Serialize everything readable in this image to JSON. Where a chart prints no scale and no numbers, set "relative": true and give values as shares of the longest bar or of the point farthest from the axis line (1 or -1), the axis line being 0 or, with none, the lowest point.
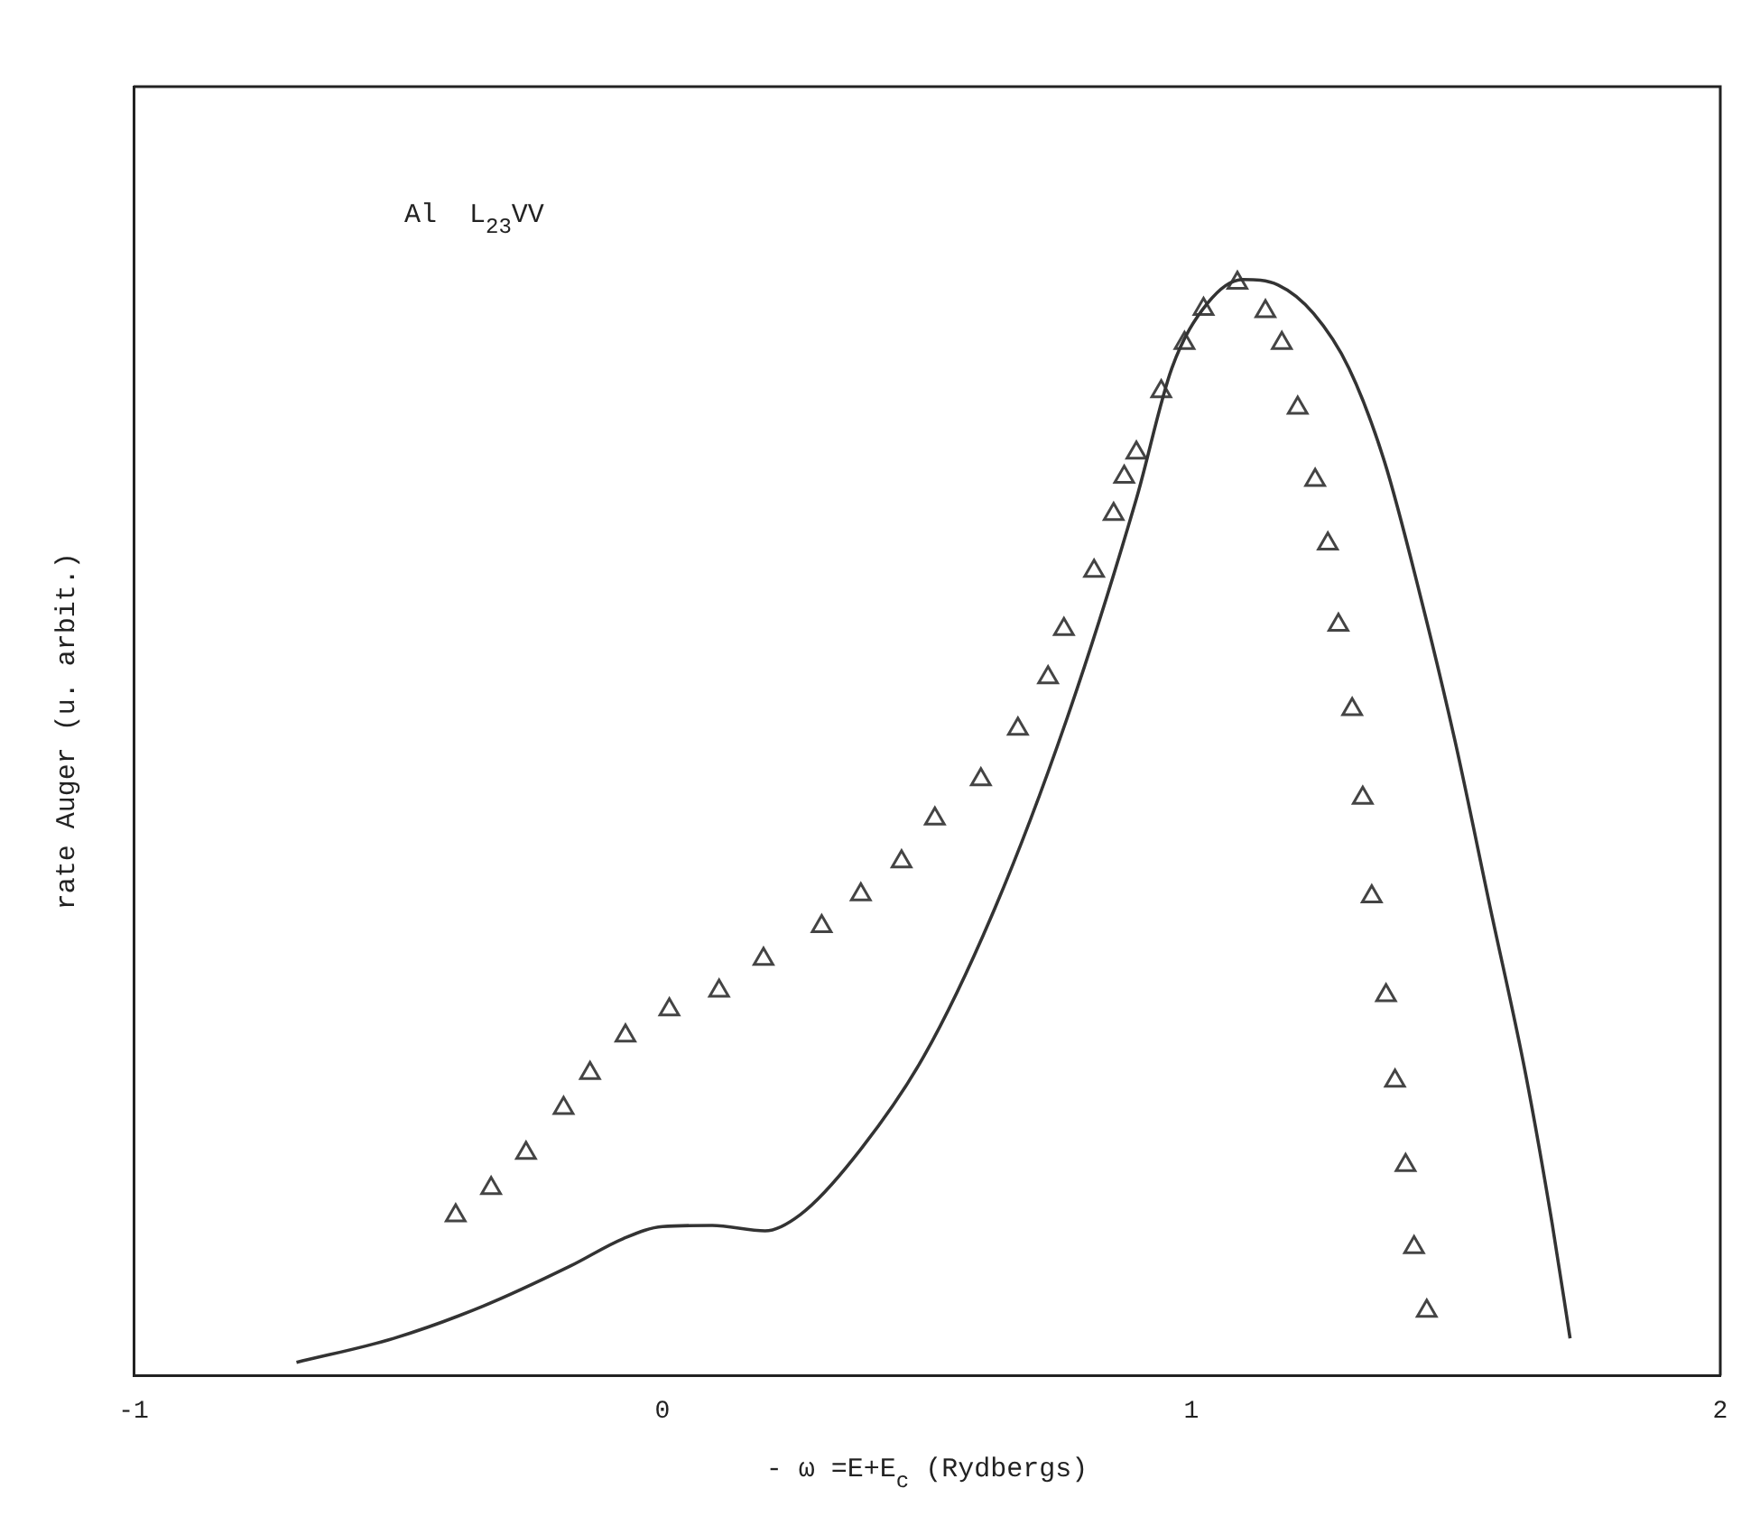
{
  "chart_data": {
    "type": "line",
    "relative": true,
    "xlabel": "- ω =E+E$_{c}$ (Rydbergs)",
    "ylabel": "rate Auger (u. arbit.)",
    "annotations": [
      "Al  L$_{23}$VV"
    ],
    "xlim": [
      -1,
      2
    ],
    "xticks": [
      -1,
      0,
      1,
      2
    ],
    "grid": false,
    "legend": false,
    "series": [
      {
        "color": "#333333",
        "marker": "none",
        "line_style": "solid",
        "x": [
          -0.692,
          -0.508,
          -0.341,
          -0.174,
          -0.074,
          0,
          0.094,
          0.194,
          0.261,
          0.361,
          0.495,
          0.629,
          0.763,
          0.896,
          0.963,
          1.03,
          1.097,
          1.164,
          1.231,
          1.298,
          1.365,
          1.431,
          1.498,
          1.565,
          1.632,
          1.682,
          1.716
        ],
        "values": [
          0.012,
          0.034,
          0.063,
          0.1,
          0.125,
          0.136,
          0.137,
          0.132,
          0.147,
          0.198,
          0.292,
          0.427,
          0.597,
          0.8,
          0.919,
          0.978,
          1,
          0.995,
          0.969,
          0.919,
          0.834,
          0.715,
          0.58,
          0.427,
          0.275,
          0.139,
          0.034
        ]
      },
      {
        "type": "scatter",
        "color": "#444444",
        "marker": "triangle",
        "x": [
          -0.391,
          -0.324,
          -0.258,
          -0.187,
          -0.137,
          -0.07,
          0.013,
          0.107,
          0.191,
          0.301,
          0.375,
          0.452,
          0.515,
          0.602,
          0.672,
          0.729,
          0.759,
          0.816,
          0.853,
          0.873,
          0.896,
          0.943,
          0.987,
          1.023,
          1.087,
          1.14,
          1.171,
          1.201,
          1.234,
          1.258,
          1.278,
          1.304,
          1.324,
          1.341,
          1.368,
          1.385,
          1.405,
          1.421,
          1.445
        ],
        "values": [
          0.146,
          0.171,
          0.203,
          0.244,
          0.276,
          0.31,
          0.334,
          0.351,
          0.38,
          0.41,
          0.439,
          0.469,
          0.508,
          0.544,
          0.59,
          0.637,
          0.681,
          0.734,
          0.786,
          0.82,
          0.842,
          0.898,
          0.942,
          0.973,
          0.997,
          0.971,
          0.942,
          0.883,
          0.817,
          0.759,
          0.685,
          0.608,
          0.527,
          0.437,
          0.347,
          0.269,
          0.192,
          0.117,
          0.059
        ]
      }
    ]
  }
}
